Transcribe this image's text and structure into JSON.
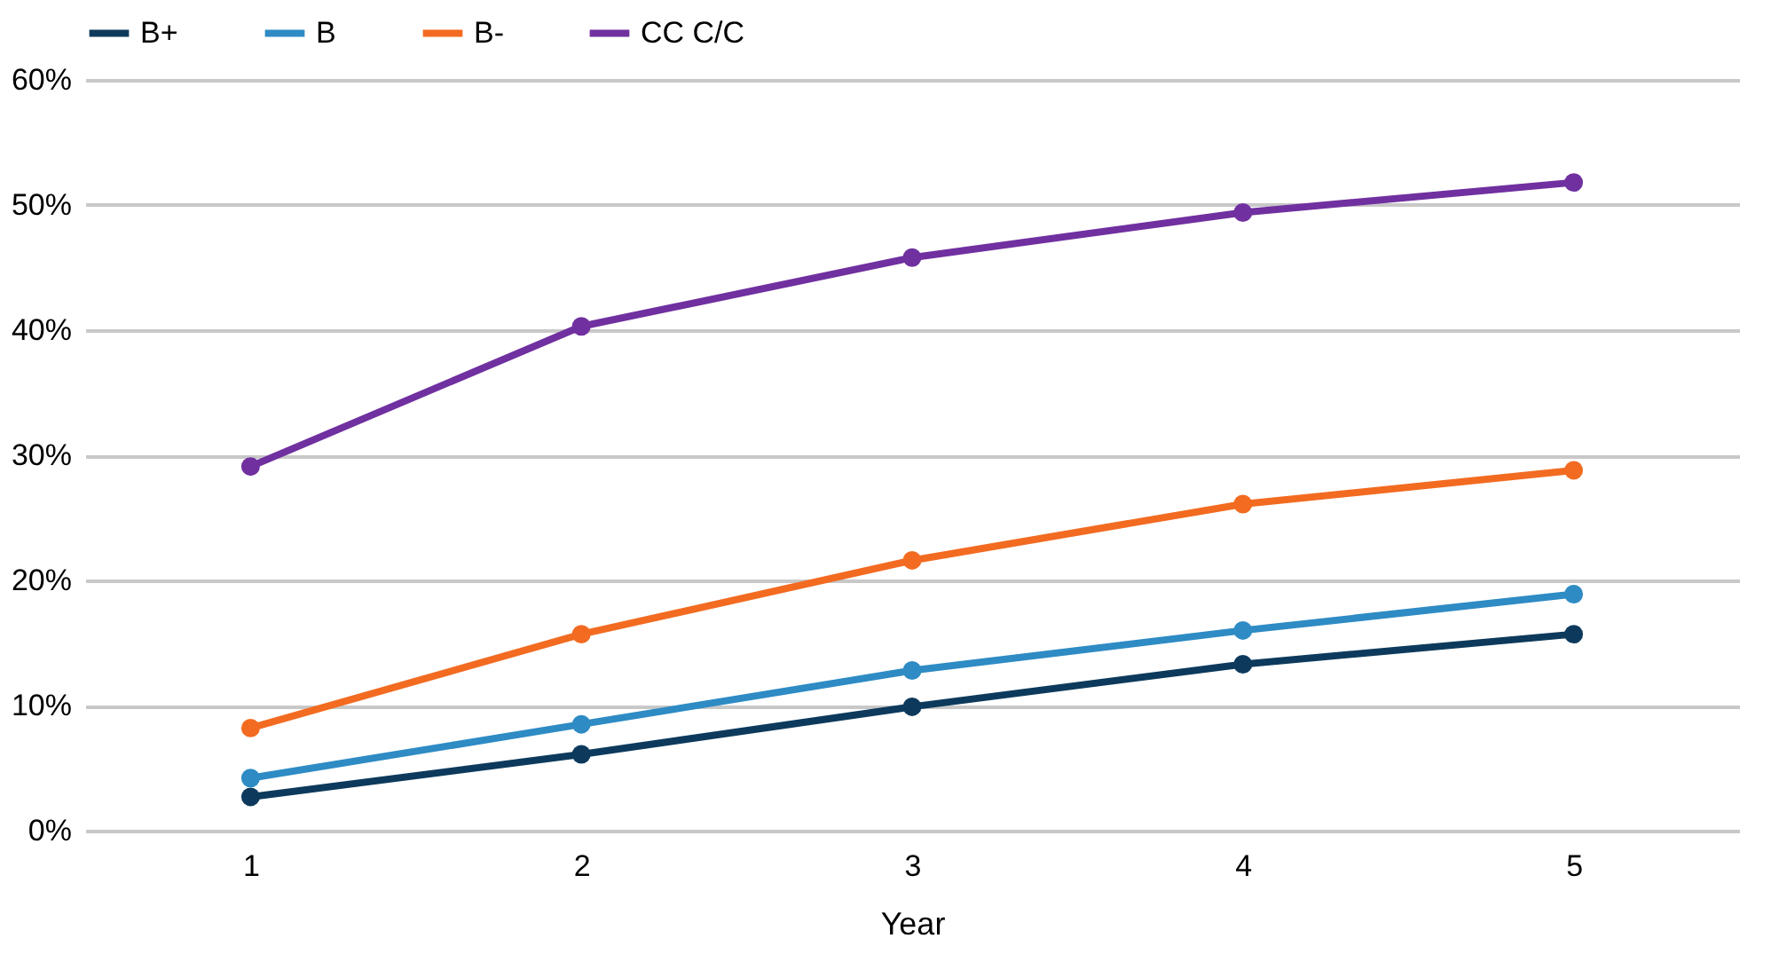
{
  "chart_data": {
    "type": "line",
    "xlabel": "Year",
    "categories": [
      "1",
      "2",
      "3",
      "4",
      "5"
    ],
    "series": [
      {
        "name": "B+",
        "color": "#0d3a5c",
        "values": [
          2.7,
          6.1,
          9.9,
          13.3,
          15.7
        ]
      },
      {
        "name": "B",
        "color": "#2e8bc4",
        "values": [
          4.2,
          8.5,
          12.8,
          16.0,
          18.9
        ]
      },
      {
        "name": "B-",
        "color": "#f26b21",
        "values": [
          8.2,
          15.7,
          21.6,
          26.1,
          28.8
        ]
      },
      {
        "name": "CC C/C",
        "color": "#7030a0",
        "values": [
          29.1,
          40.3,
          45.8,
          49.4,
          51.8
        ]
      }
    ],
    "ylim": [
      0,
      60
    ],
    "yticks": [
      {
        "value": 0,
        "label": "0%"
      },
      {
        "value": 10,
        "label": "10%"
      },
      {
        "value": 20,
        "label": "20%"
      },
      {
        "value": 30,
        "label": "30%"
      },
      {
        "value": 40,
        "label": "40%"
      },
      {
        "value": 50,
        "label": "50%"
      },
      {
        "value": 60,
        "label": "60%"
      }
    ],
    "grid": "y",
    "legend": "top",
    "marker": "circle",
    "line_style": "solid"
  }
}
